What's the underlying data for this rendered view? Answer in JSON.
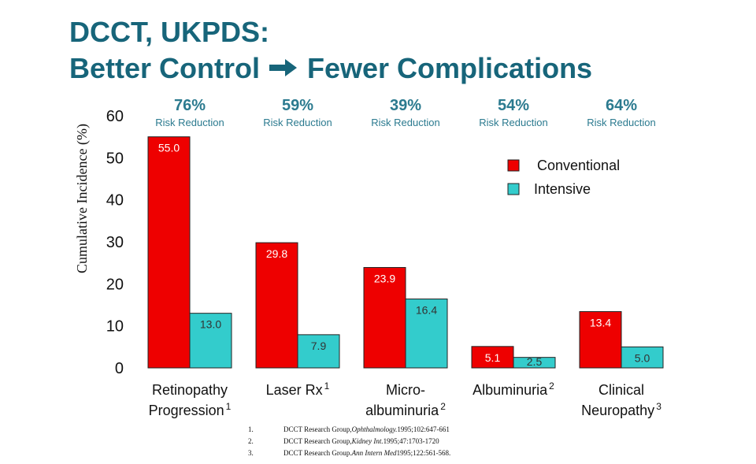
{
  "title": {
    "line1": "DCCT, UKPDS:",
    "line2_left": "Better Control",
    "line2_right": "Fewer Complications"
  },
  "colors": {
    "title": "#17657a",
    "conventional": "#ee0000",
    "intensive": "#33cccc",
    "risk_text": "#2b7a8f"
  },
  "chart_data": {
    "type": "bar",
    "ylabel": "Cumulative Incidence (%)",
    "ylim": [
      0,
      60
    ],
    "yticks": [
      0,
      10,
      20,
      30,
      40,
      50,
      60
    ],
    "grid": false,
    "legend_position": "top-right",
    "categories": [
      {
        "label": "Retinopathy",
        "label2": "Progression",
        "sup": "1"
      },
      {
        "label": "Laser Rx",
        "label2": "",
        "sup": "1"
      },
      {
        "label": "Micro-",
        "label2": "albuminuria",
        "sup": "2"
      },
      {
        "label": "Albuminuria",
        "label2": "",
        "sup": "2"
      },
      {
        "label": "Clinical",
        "label2": "Neuropathy",
        "sup": "3"
      }
    ],
    "series": [
      {
        "name": "Conventional",
        "values": [
          55.0,
          29.8,
          23.9,
          5.1,
          13.4
        ],
        "labels": [
          "55.0",
          "29.8",
          "23.9",
          "5.1",
          "13.4"
        ]
      },
      {
        "name": "Intensive",
        "values": [
          13.0,
          7.9,
          16.4,
          2.5,
          5.0
        ],
        "labels": [
          "13.0",
          "7.9",
          "16.4",
          "2.5",
          "5.0"
        ]
      }
    ],
    "annotations": [
      {
        "value": "76%",
        "text": "Risk Reduction"
      },
      {
        "value": "59%",
        "text": "Risk Reduction"
      },
      {
        "value": "39%",
        "text": "Risk Reduction"
      },
      {
        "value": "54%",
        "text": "Risk Reduction"
      },
      {
        "value": "64%",
        "text": "Risk Reduction"
      }
    ]
  },
  "references": [
    {
      "num": "1.",
      "pre": "DCCT Research Group, ",
      "journal": "Ophthalmology.",
      "post": " 1995;102:647-661"
    },
    {
      "num": "2.",
      "pre": "DCCT Research Group, ",
      "journal": "Kidney Int.",
      "post": " 1995;47:1703-1720"
    },
    {
      "num": "3.",
      "pre": "DCCT Research Group. ",
      "journal": "Ann Intern Med",
      "post": " 1995;122:561-568."
    }
  ]
}
